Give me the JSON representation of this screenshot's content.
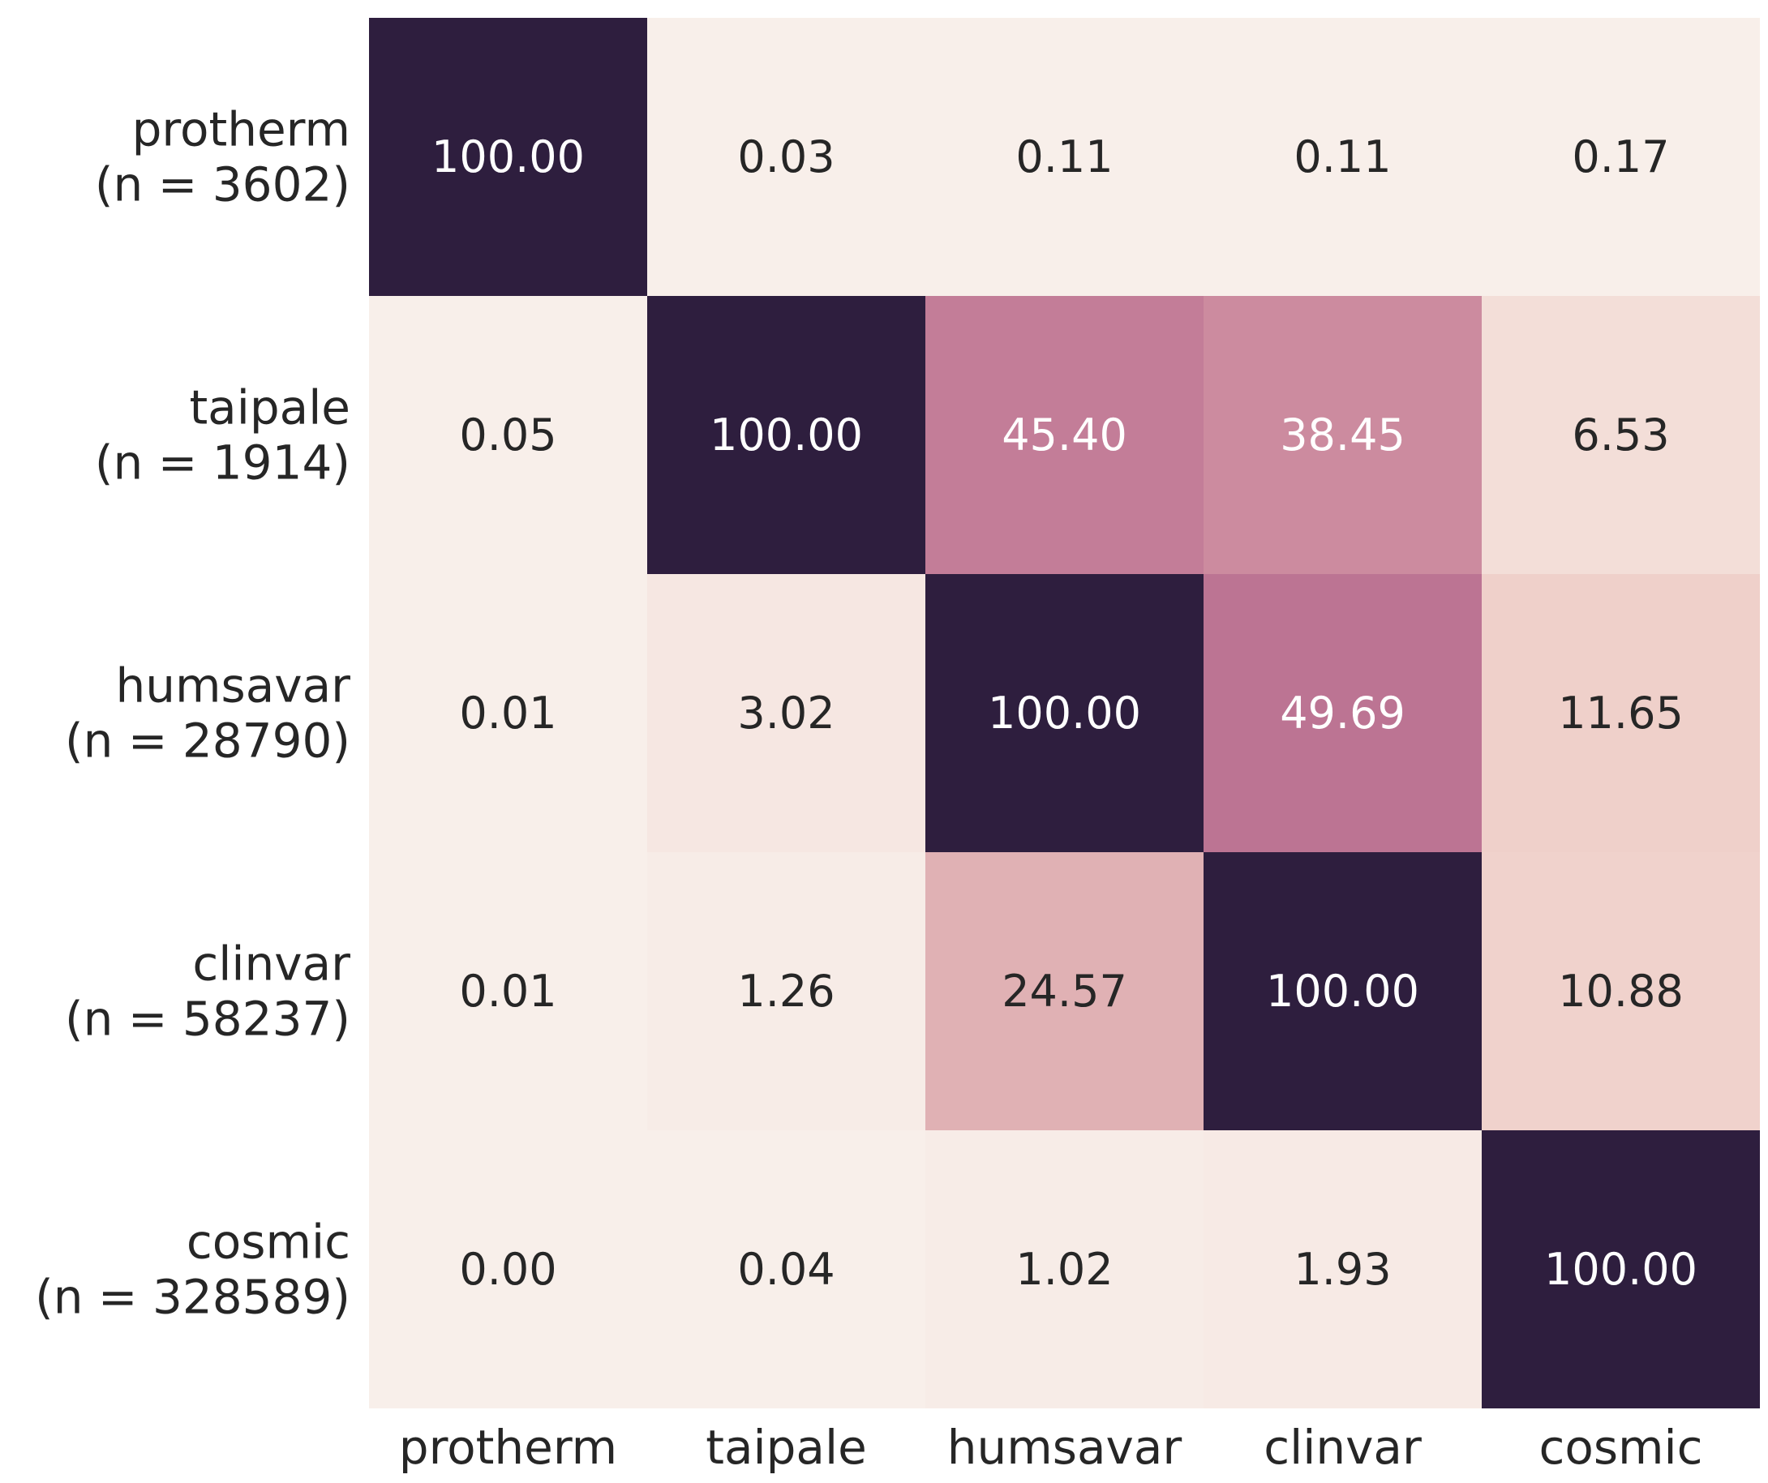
{
  "chart_data": {
    "type": "heatmap",
    "title": "",
    "xlabel": "",
    "ylabel": "",
    "x_categories": [
      "protherm",
      "taipale",
      "humsavar",
      "clinvar",
      "cosmic"
    ],
    "y_categories": [
      [
        "protherm",
        "(n = 3602)"
      ],
      [
        "taipale",
        "(n = 1914)"
      ],
      [
        "humsavar",
        "(n = 28790)"
      ],
      [
        "clinvar",
        "(n = 58237)"
      ],
      [
        "cosmic",
        "(n = 328589)"
      ]
    ],
    "values": [
      [
        100.0,
        0.03,
        0.11,
        0.11,
        0.17
      ],
      [
        0.05,
        100.0,
        45.4,
        38.45,
        6.53
      ],
      [
        0.01,
        3.02,
        100.0,
        49.69,
        11.65
      ],
      [
        0.01,
        1.26,
        24.57,
        100.0,
        10.88
      ],
      [
        0.0,
        0.04,
        1.02,
        1.93,
        100.0
      ]
    ],
    "value_format": "0.00",
    "vmin": 0,
    "vmax": 100,
    "colorbar": false,
    "colors": {
      "low": "#f8efea",
      "mid1": "#efcfc9",
      "mid2": "#e0b0b3",
      "mid3": "#cd8c9f",
      "mid4": "#bc7393",
      "high": "#2e1e3e",
      "text_dark": "#262626",
      "text_light": "#ffffff"
    }
  }
}
